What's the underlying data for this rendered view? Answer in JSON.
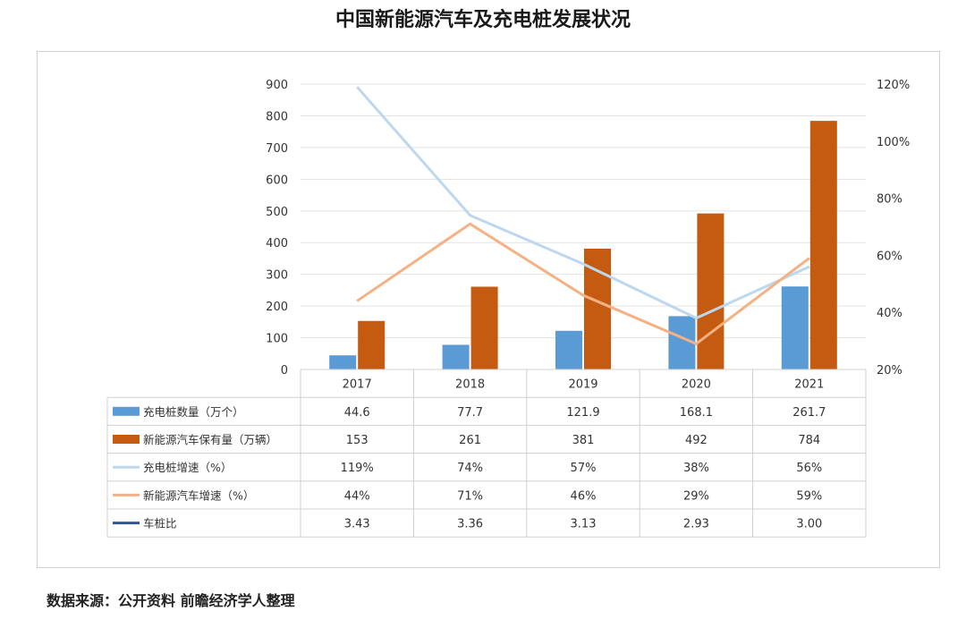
{
  "title": "中国新能源汽车及充电桩发展状况",
  "source": "数据来源：公开资料 前瞻经济学人整理",
  "colors": {
    "bar_chargers": "#5b9bd5",
    "bar_vehicles": "#c55a11",
    "line_charger_growth": "#bdd7ee",
    "line_vehicle_growth": "#f4b183",
    "ratio": "#2f5597"
  },
  "chart_data": {
    "type": "bar",
    "title": "中国新能源汽车及充电桩发展状况",
    "categories": [
      "2017",
      "2018",
      "2019",
      "2020",
      "2021"
    ],
    "y_left": {
      "ylim": [
        0,
        900
      ],
      "ticks": [
        "0",
        "100",
        "200",
        "300",
        "400",
        "500",
        "600",
        "700",
        "800",
        "900"
      ]
    },
    "y_right": {
      "ylim": [
        20,
        120
      ],
      "ticks": [
        "20%",
        "40%",
        "60%",
        "80%",
        "100%",
        "120%"
      ]
    },
    "grid": true,
    "series": [
      {
        "name": "充电桩数量（万个）",
        "type": "bar",
        "axis": "left",
        "values": [
          44.6,
          77.7,
          121.9,
          168.1,
          261.7
        ],
        "labels": [
          "44.6",
          "77.7",
          "121.9",
          "168.1",
          "261.7"
        ]
      },
      {
        "name": "新能源汽车保有量（万辆）",
        "type": "bar",
        "axis": "left",
        "values": [
          153,
          261,
          381,
          492,
          784
        ],
        "labels": [
          "153",
          "261",
          "381",
          "492",
          "784"
        ]
      },
      {
        "name": "充电桩增速（%）",
        "type": "line",
        "axis": "right",
        "values": [
          119,
          74,
          57,
          38,
          56
        ],
        "labels": [
          "119%",
          "74%",
          "57%",
          "38%",
          "56%"
        ]
      },
      {
        "name": "新能源汽车增速（%）",
        "type": "line",
        "axis": "right",
        "values": [
          44,
          71,
          46,
          29,
          59
        ],
        "labels": [
          "44%",
          "71%",
          "46%",
          "29%",
          "59%"
        ]
      },
      {
        "name": "车桩比",
        "type": "line",
        "axis": "none",
        "values": [
          3.43,
          3.36,
          3.13,
          2.93,
          3.0
        ],
        "labels": [
          "3.43",
          "3.36",
          "3.13",
          "2.93",
          "3.00"
        ]
      }
    ]
  }
}
